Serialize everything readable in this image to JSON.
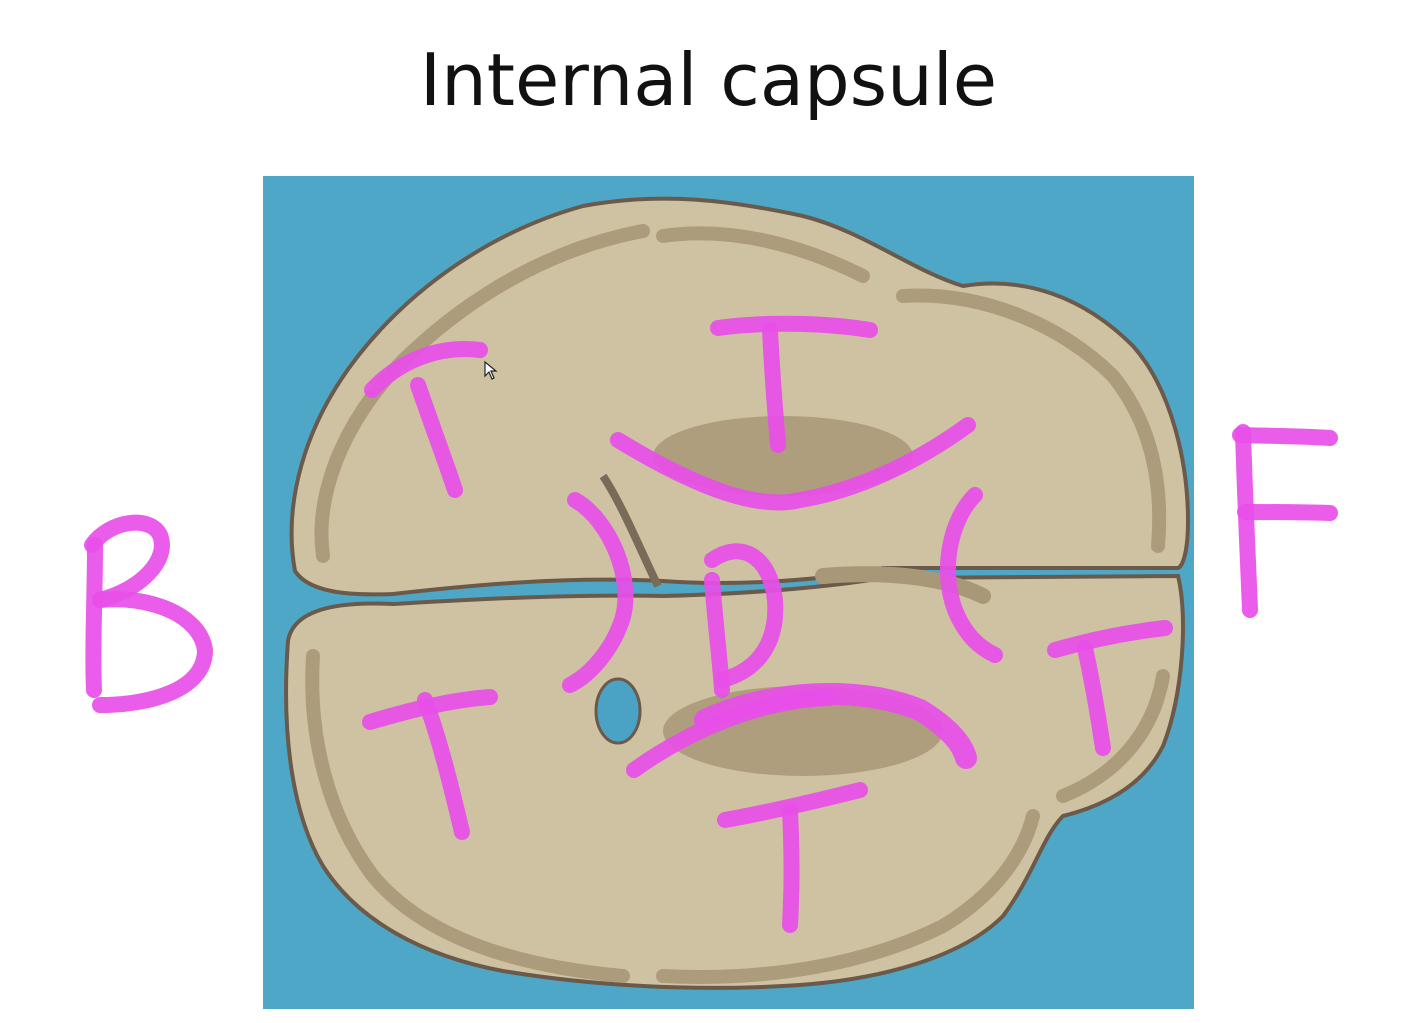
{
  "slide": {
    "title": "Internal capsule"
  },
  "annotations": {
    "ink_color": "#e84ee8",
    "letters": [
      {
        "name": "letter-B",
        "text": "B"
      },
      {
        "name": "letter-F",
        "text": "F"
      },
      {
        "name": "letter-T-top-left",
        "text": "T"
      },
      {
        "name": "letter-T-top-center",
        "text": "T"
      },
      {
        "name": "letter-T-bottom-left",
        "text": "T"
      },
      {
        "name": "letter-T-bottom-center",
        "text": "T"
      },
      {
        "name": "letter-T-right",
        "text": "T"
      },
      {
        "name": "letter-D-center",
        "text": "D"
      }
    ]
  },
  "photo": {
    "background_color": "#4aa3c4",
    "tissue_color": "#cfc2a3",
    "gray_matter_color": "#a99878",
    "cursor": "arrow-cursor-icon"
  }
}
